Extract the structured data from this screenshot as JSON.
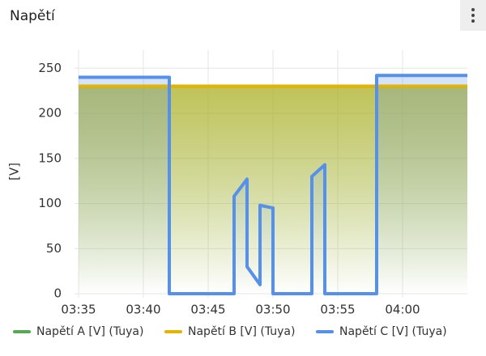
{
  "chart_data": {
    "type": "line",
    "title": "Napětí",
    "y_label": "[V]",
    "xlim": [
      "03:35",
      "04:05"
    ],
    "xticks": [
      "03:35",
      "03:40",
      "03:45",
      "03:50",
      "03:55",
      "04:00"
    ],
    "ylim": [
      0,
      270
    ],
    "yticks": [
      0,
      50,
      100,
      150,
      200,
      250
    ],
    "grid": true,
    "series": [
      {
        "name": "Napětí A [V] (Tuya)",
        "color": "#55aa55",
        "x": [
          "03:35",
          "04:05"
        ],
        "values": [
          230,
          230
        ]
      },
      {
        "name": "Napětí B [V] (Tuya)",
        "color": "#e6b300",
        "x": [
          "03:35",
          "04:05"
        ],
        "values": [
          230,
          230
        ]
      },
      {
        "name": "Napětí C [V] (Tuya)",
        "color": "#5590ec",
        "x": [
          "03:35",
          "03:42",
          "03:42",
          "03:47",
          "03:47",
          "03:48",
          "03:48",
          "03:49",
          "03:49",
          "03:50",
          "03:50",
          "03:53",
          "03:53",
          "03:54",
          "03:54",
          "03:54",
          "03:58",
          "03:58",
          "04:05"
        ],
        "values": [
          240,
          240,
          0,
          0,
          108,
          127,
          30,
          10,
          98,
          95,
          0,
          0,
          130,
          143,
          125,
          0,
          0,
          242,
          242
        ]
      }
    ]
  }
}
